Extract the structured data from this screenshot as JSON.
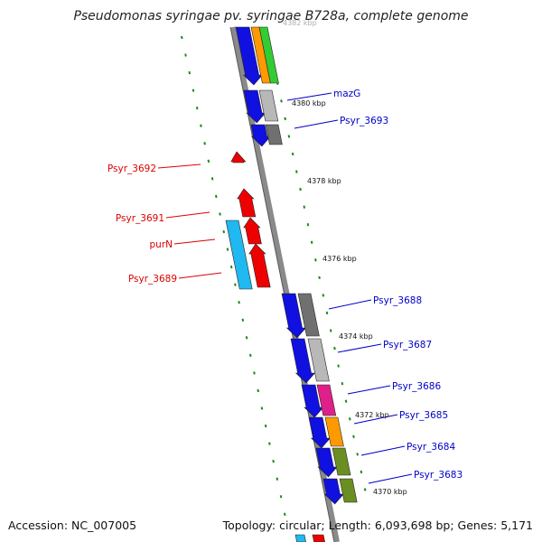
{
  "title": "Pseudomonas syringae pv. syringae B728a, complete genome",
  "footer": {
    "accession": "Accession: NC_007005",
    "topology": "Topology: circular; Length: 6,093,698 bp; Genes: 5,171"
  },
  "colors": {
    "backbone": "#808080",
    "label_forward": "#0000c8",
    "label_reverse": "#dd0000",
    "tick": "#1a8a1a",
    "blue": "#1010e0",
    "red": "#ee0000",
    "cyan": "#20b8f0",
    "orange": "#ff9900",
    "green": "#33cc33",
    "olive": "#6b8e23",
    "light_gray": "#b8b8b8",
    "dark_gray": "#707070",
    "magenta": "#e0208a"
  },
  "scale_labels": [
    "4382 kbp",
    "4380 kbp",
    "4378 kbp",
    "4376 kbp",
    "4374 kbp",
    "4372 kbp",
    "4370 kbp"
  ],
  "forward_genes": [
    {
      "label": "mazG",
      "cog_color": "light_gray"
    },
    {
      "label": "Psyr_3693",
      "cog_color": "dark_gray"
    },
    {
      "label": "Psyr_3688",
      "cog_color": "dark_gray"
    },
    {
      "label": "Psyr_3687",
      "cog_color": "light_gray"
    },
    {
      "label": "Psyr_3686",
      "cog_color": "magenta"
    },
    {
      "label": "Psyr_3685",
      "cog_color": "orange"
    },
    {
      "label": "Psyr_3684",
      "cog_color": "olive"
    },
    {
      "label": "Psyr_3683",
      "cog_color": "olive"
    }
  ],
  "reverse_genes": [
    {
      "label": "Psyr_3692",
      "cog_color": "red"
    },
    {
      "label": "Psyr_3691",
      "cog_color": "red"
    },
    {
      "label": "purN",
      "cog_color": "cyan"
    },
    {
      "label": "Psyr_3689",
      "cog_color": "red"
    }
  ]
}
